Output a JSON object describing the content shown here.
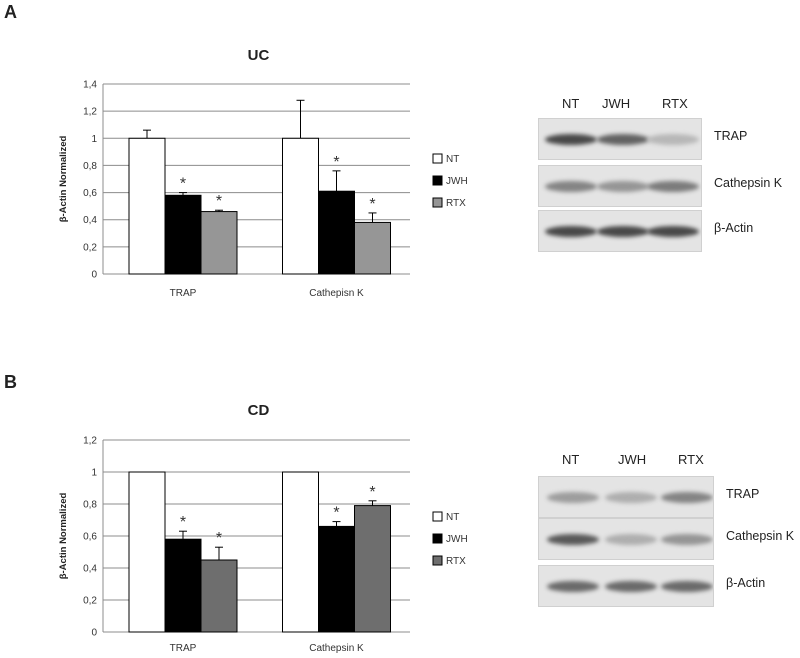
{
  "panels": {
    "a_letter": "A",
    "b_letter": "B"
  },
  "chart_data": [
    {
      "type": "bar",
      "title": "UC",
      "ylabel": "β-Actin Normalized",
      "xlabel": "",
      "categories": [
        "TRAP",
        "Cathepisn K"
      ],
      "ylim": [
        0,
        1.4
      ],
      "yticks": [
        "0",
        "0,2",
        "0,4",
        "0,6",
        "0,8",
        "1",
        "1,2",
        "1,4"
      ],
      "grid": true,
      "legend_position": "right",
      "series": [
        {
          "name": "NT",
          "color": "#ffffff",
          "values": [
            1.0,
            1.0
          ],
          "errors": [
            0.06,
            0.28
          ]
        },
        {
          "name": "JWH",
          "color": "#000000",
          "values": [
            0.58,
            0.61
          ],
          "errors": [
            0.02,
            0.15
          ]
        },
        {
          "name": "RTX",
          "color": "#969696",
          "values": [
            0.46,
            0.38
          ],
          "errors": [
            0.01,
            0.07
          ]
        }
      ],
      "significance": [
        {
          "category": "TRAP",
          "series": "JWH",
          "label": "*"
        },
        {
          "category": "TRAP",
          "series": "RTX",
          "label": "*"
        },
        {
          "category": "Cathepisn K",
          "series": "JWH",
          "label": "*"
        },
        {
          "category": "Cathepisn K",
          "series": "RTX",
          "label": "*"
        }
      ]
    },
    {
      "type": "bar",
      "title": "CD",
      "ylabel": "β-Actin Normalized",
      "xlabel": "",
      "categories": [
        "TRAP",
        "Cathepsin K"
      ],
      "ylim": [
        0,
        1.2
      ],
      "yticks": [
        "0",
        "0,2",
        "0,4",
        "0,6",
        "0,8",
        "1",
        "1,2"
      ],
      "grid": true,
      "legend_position": "right",
      "series": [
        {
          "name": "NT",
          "color": "#ffffff",
          "values": [
            1.0,
            1.0
          ],
          "errors": [
            0,
            0
          ]
        },
        {
          "name": "JWH",
          "color": "#000000",
          "values": [
            0.58,
            0.66
          ],
          "errors": [
            0.05,
            0.03
          ]
        },
        {
          "name": "RTX",
          "color": "#6e6e6e",
          "values": [
            0.45,
            0.79
          ],
          "errors": [
            0.08,
            0.03
          ]
        }
      ],
      "significance": [
        {
          "category": "TRAP",
          "series": "JWH",
          "label": "*"
        },
        {
          "category": "TRAP",
          "series": "RTX",
          "label": "*"
        },
        {
          "category": "Cathepsin K",
          "series": "JWH",
          "label": "*"
        },
        {
          "category": "Cathepsin K",
          "series": "RTX",
          "label": "*"
        }
      ]
    }
  ],
  "blots": {
    "a": {
      "columns": [
        "NT",
        "JWH",
        "RTX"
      ],
      "rows": [
        {
          "label": "TRAP",
          "intensity": [
            0.9,
            0.75,
            0.25
          ]
        },
        {
          "label": "Cathepsin K",
          "intensity": [
            0.55,
            0.45,
            0.6
          ]
        },
        {
          "label": "β-Actin",
          "intensity": [
            0.9,
            0.9,
            0.9
          ]
        }
      ]
    },
    "b": {
      "columns": [
        "NT",
        "JWH",
        "RTX"
      ],
      "rows": [
        {
          "label": "TRAP",
          "intensity": [
            0.4,
            0.3,
            0.55
          ]
        },
        {
          "label": "Cathepsin K",
          "intensity": [
            0.8,
            0.3,
            0.45
          ]
        },
        {
          "label": "β-Actin",
          "intensity": [
            0.7,
            0.7,
            0.7
          ]
        }
      ]
    }
  }
}
